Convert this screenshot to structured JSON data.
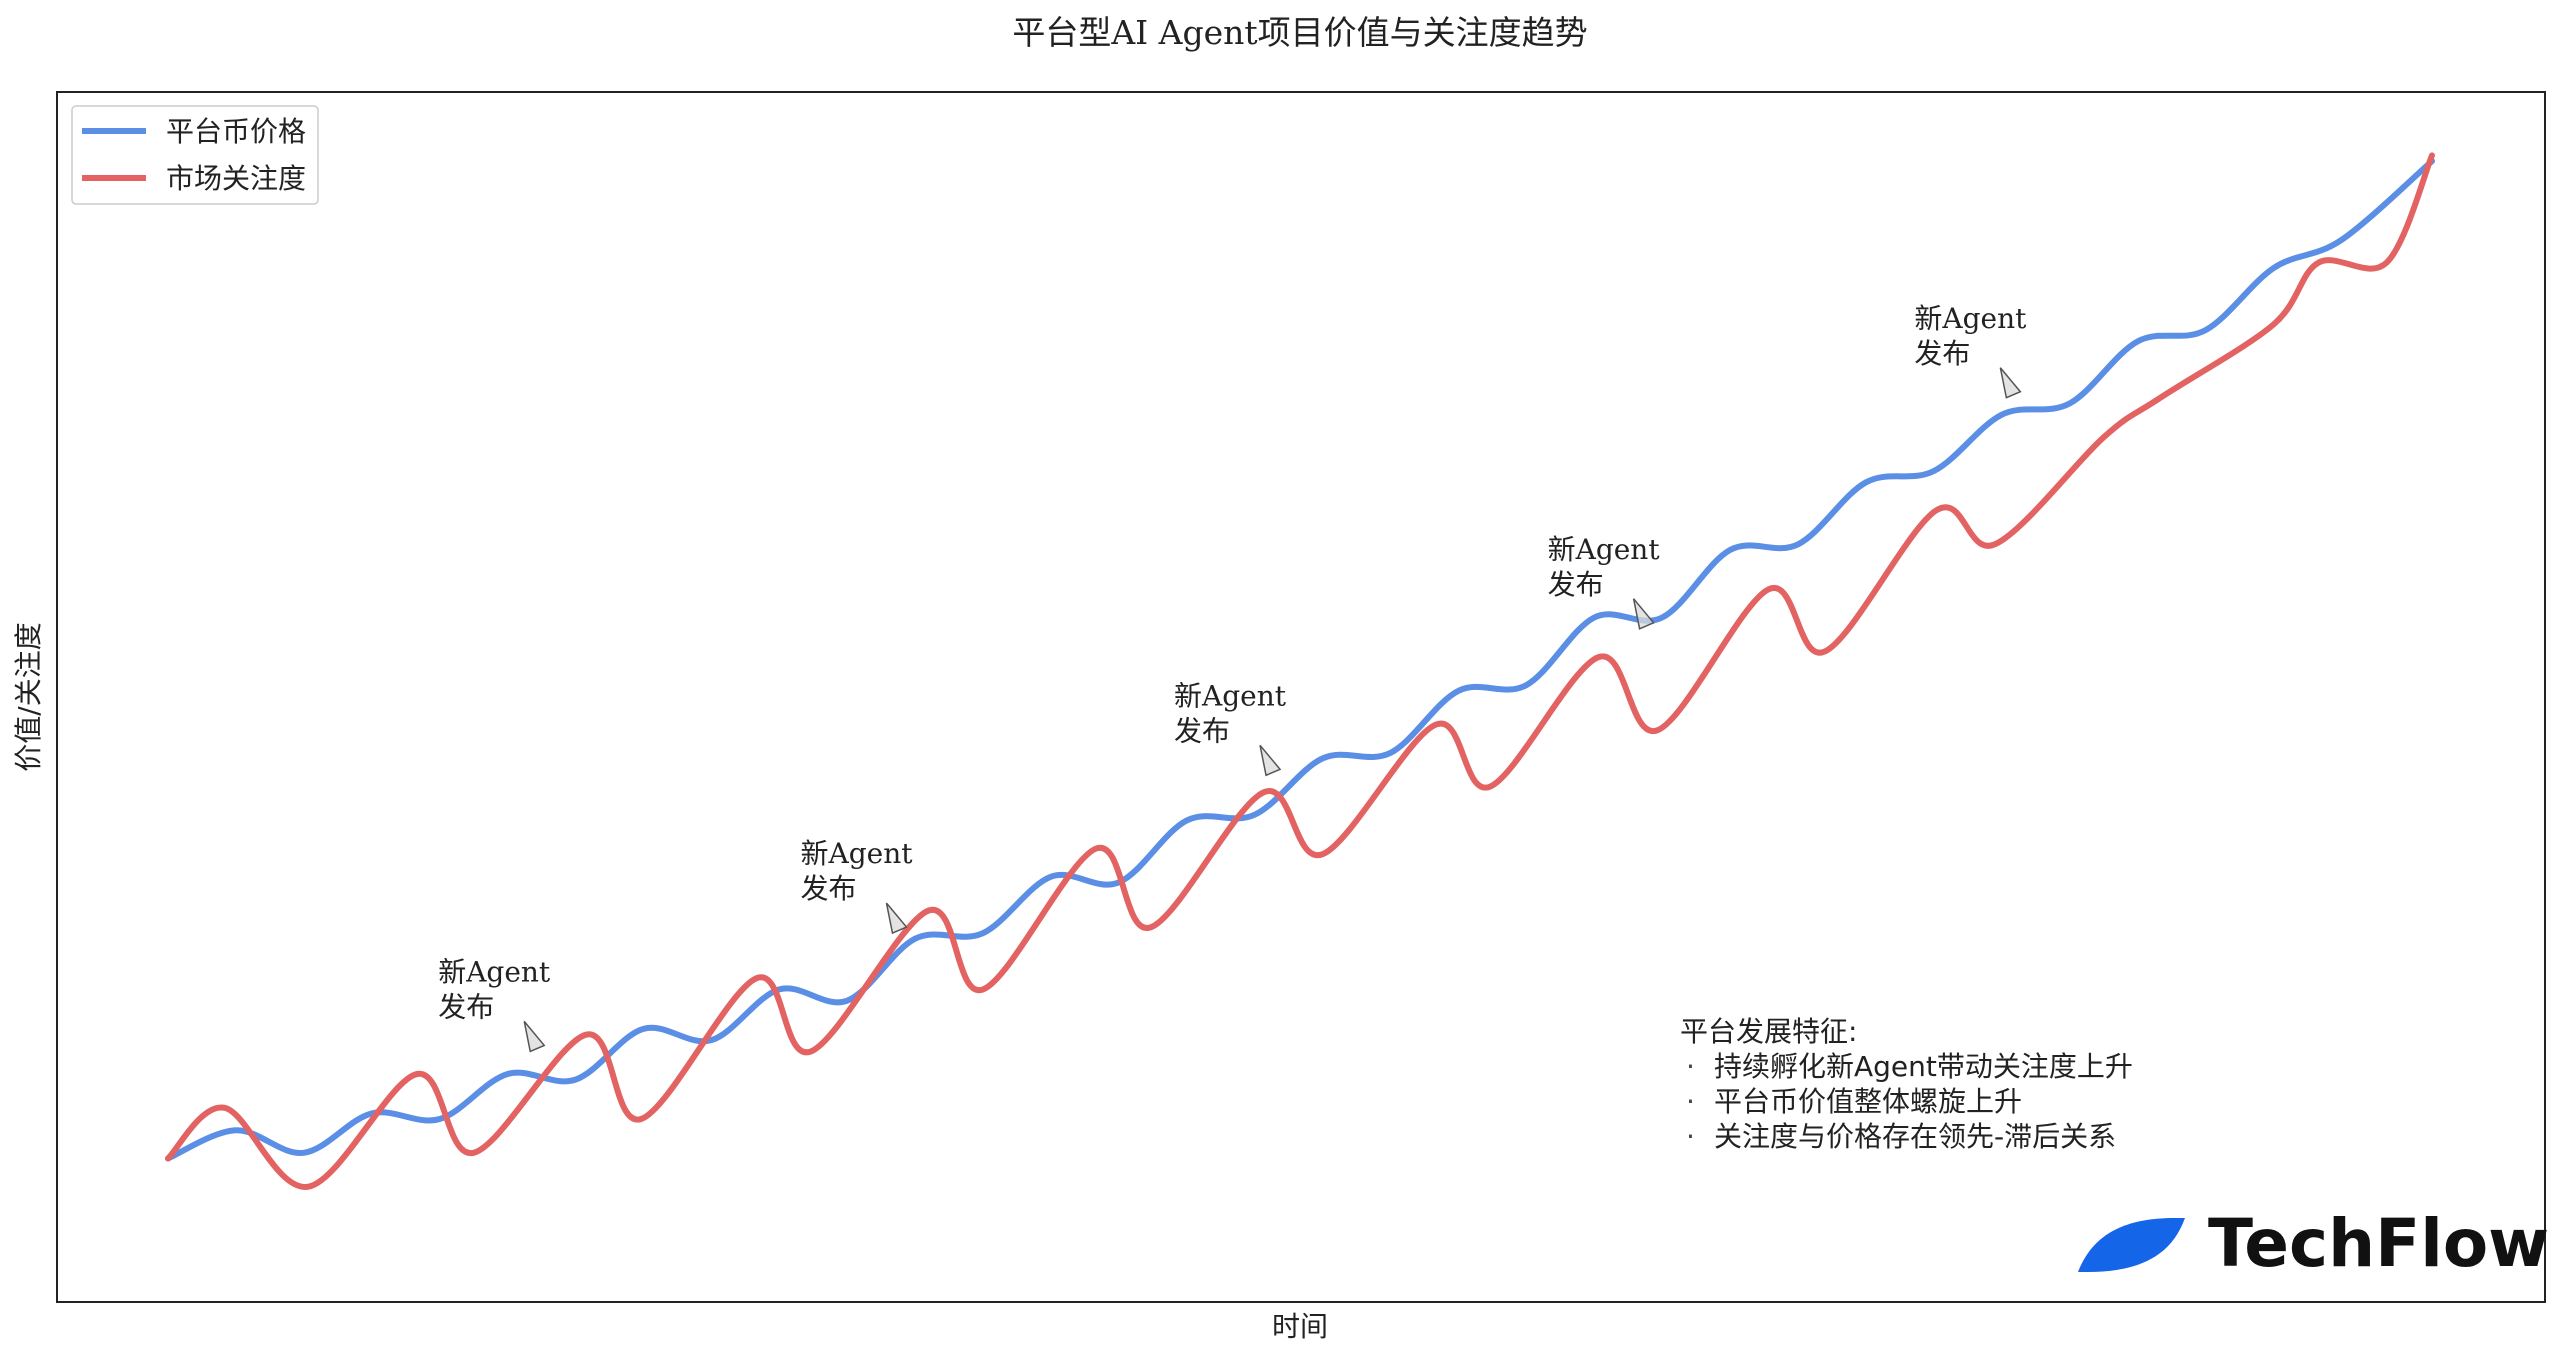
{
  "chart_data": {
    "type": "line",
    "title": "平台型AI Agent项目价值与关注度趋势",
    "xlabel": "时间",
    "ylabel": "价值/关注度",
    "xlim": [
      0,
      1
    ],
    "ylim": [
      0,
      1
    ],
    "grid": false,
    "legend_position": "top-left",
    "series": [
      {
        "name": "平台币价格",
        "color": "#5b8fe6",
        "x": [
          0.0,
          0.03,
          0.06,
          0.09,
          0.12,
          0.15,
          0.18,
          0.21,
          0.24,
          0.27,
          0.3,
          0.33,
          0.36,
          0.39,
          0.42,
          0.45,
          0.48,
          0.51,
          0.54,
          0.57,
          0.6,
          0.63,
          0.66,
          0.69,
          0.72,
          0.75,
          0.78,
          0.81,
          0.84,
          0.87,
          0.9,
          0.93,
          0.96,
          1.0
        ],
        "values": [
          0.075,
          0.1,
          0.08,
          0.115,
          0.11,
          0.15,
          0.145,
          0.19,
          0.18,
          0.225,
          0.215,
          0.27,
          0.275,
          0.325,
          0.32,
          0.375,
          0.38,
          0.43,
          0.435,
          0.49,
          0.495,
          0.555,
          0.555,
          0.615,
          0.62,
          0.675,
          0.685,
          0.735,
          0.745,
          0.8,
          0.81,
          0.865,
          0.89,
          0.96
        ]
      },
      {
        "name": "市场关注度",
        "color": "#e36363",
        "x": [
          0.0,
          0.025,
          0.062,
          0.11,
          0.135,
          0.185,
          0.209,
          0.26,
          0.284,
          0.336,
          0.36,
          0.41,
          0.434,
          0.484,
          0.51,
          0.56,
          0.584,
          0.632,
          0.658,
          0.707,
          0.732,
          0.781,
          0.807,
          0.855,
          0.88,
          0.93,
          0.95,
          0.98,
          1.0
        ],
        "values": [
          0.075,
          0.12,
          0.05,
          0.15,
          0.08,
          0.185,
          0.11,
          0.235,
          0.17,
          0.295,
          0.225,
          0.35,
          0.28,
          0.4,
          0.345,
          0.46,
          0.405,
          0.52,
          0.455,
          0.58,
          0.525,
          0.65,
          0.62,
          0.715,
          0.75,
          0.815,
          0.87,
          0.87,
          0.965
        ]
      }
    ],
    "annotations": [
      {
        "line1": "新Agent",
        "line2": "发布",
        "x": 0.16,
        "y": 0.17
      },
      {
        "line1": "新Agent",
        "line2": "发布",
        "x": 0.32,
        "y": 0.275
      },
      {
        "line1": "新Agent",
        "line2": "发布",
        "x": 0.485,
        "y": 0.415
      },
      {
        "line1": "新Agent",
        "line2": "发布",
        "x": 0.65,
        "y": 0.545
      },
      {
        "line1": "新Agent",
        "line2": "发布",
        "x": 0.812,
        "y": 0.75
      }
    ],
    "features_box": {
      "title": "平台发展特征:",
      "items": [
        "持续孵化新Agent带动关注度上升",
        "平台币价值整体螺旋上升",
        "关注度与价格存在领先-滞后关系"
      ],
      "bullet": "·"
    }
  },
  "logo": {
    "text": "TechFlow",
    "color": "#1565e8"
  }
}
